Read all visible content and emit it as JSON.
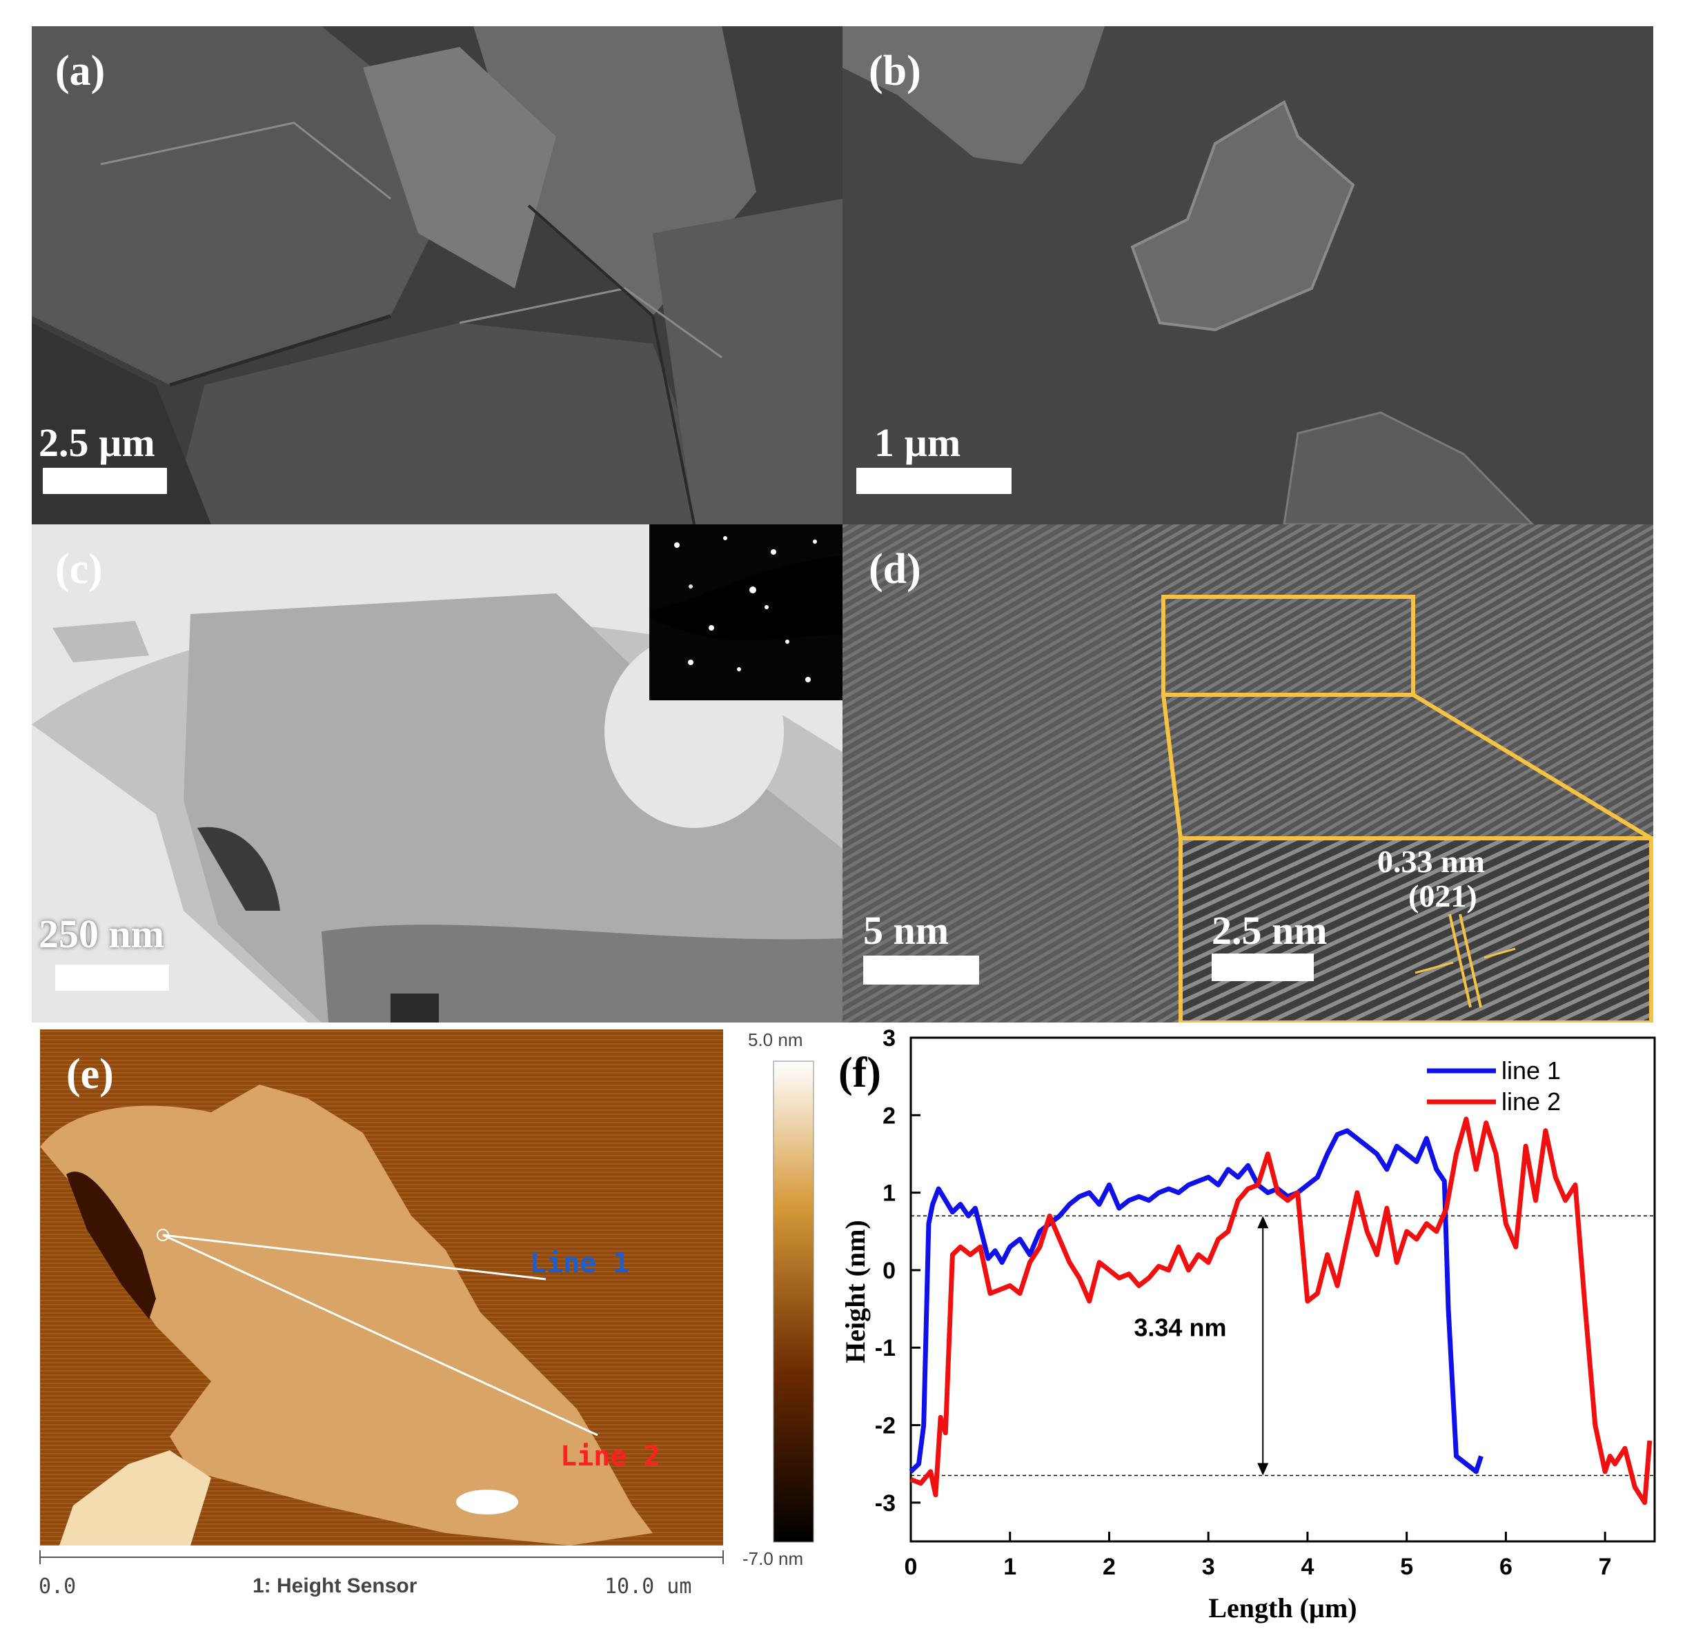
{
  "panels": {
    "a": {
      "label": "(a)",
      "scale": "2.5 µm"
    },
    "b": {
      "label": "(b)",
      "scale": "1 µm"
    },
    "c": {
      "label": "(c)",
      "scale": "250 nm"
    },
    "d": {
      "label": "(d)",
      "scale": "5 nm",
      "inset_scale": "2.5 nm",
      "spacing": "0.33 nm",
      "plane": "(021)"
    },
    "e": {
      "label": "(e)",
      "line1": "Line 1",
      "line2": "Line 2",
      "cbar_max": "5.0 nm",
      "cbar_min": "-7.0 nm",
      "axis_start": "0.0",
      "axis_title": "1: Height Sensor",
      "axis_end": "10.0 um"
    },
    "f": {
      "label": "(f)"
    }
  },
  "colors": {
    "line1": "#1010e8",
    "line2": "#f01010",
    "box": "#f5c242"
  },
  "chart_data": {
    "type": "line",
    "xlabel": "Length (µm)",
    "ylabel": "Height (nm)",
    "xlim": [
      0,
      7.5
    ],
    "ylim": [
      -3.5,
      3
    ],
    "xticks": [
      0,
      1,
      2,
      3,
      4,
      5,
      6,
      7
    ],
    "yticks": [
      -3,
      -2,
      -1,
      0,
      1,
      2,
      3
    ],
    "legend_position": "top-right",
    "annotation": "3.34 nm",
    "reference_lines": [
      0.7,
      -2.65
    ],
    "series": [
      {
        "name": "line 1",
        "color": "#1010e8",
        "x": [
          0,
          0.08,
          0.13,
          0.18,
          0.22,
          0.28,
          0.35,
          0.42,
          0.5,
          0.58,
          0.65,
          0.72,
          0.78,
          0.85,
          0.92,
          1.0,
          1.1,
          1.2,
          1.3,
          1.4,
          1.5,
          1.6,
          1.7,
          1.8,
          1.9,
          2.0,
          2.1,
          2.2,
          2.3,
          2.4,
          2.5,
          2.6,
          2.7,
          2.8,
          2.9,
          3.0,
          3.1,
          3.2,
          3.3,
          3.4,
          3.5,
          3.6,
          3.7,
          3.8,
          3.9,
          4.0,
          4.1,
          4.2,
          4.3,
          4.4,
          4.5,
          4.6,
          4.7,
          4.8,
          4.9,
          5.0,
          5.1,
          5.2,
          5.3,
          5.38,
          5.42,
          5.5,
          5.6,
          5.7,
          5.75
        ],
        "y": [
          -2.6,
          -2.5,
          -2.0,
          0.6,
          0.85,
          1.05,
          0.9,
          0.75,
          0.85,
          0.7,
          0.8,
          0.45,
          0.15,
          0.25,
          0.1,
          0.3,
          0.4,
          0.2,
          0.5,
          0.6,
          0.7,
          0.85,
          0.95,
          1.0,
          0.85,
          1.1,
          0.8,
          0.9,
          0.95,
          0.9,
          1.0,
          1.05,
          1.0,
          1.1,
          1.15,
          1.2,
          1.1,
          1.3,
          1.2,
          1.35,
          1.1,
          1.0,
          1.05,
          0.95,
          1.0,
          1.1,
          1.2,
          1.5,
          1.75,
          1.8,
          1.7,
          1.6,
          1.5,
          1.3,
          1.6,
          1.5,
          1.4,
          1.7,
          1.3,
          1.15,
          -0.5,
          -2.4,
          -2.5,
          -2.6,
          -2.4
        ]
      },
      {
        "name": "line 2",
        "color": "#f01010",
        "x": [
          0,
          0.1,
          0.2,
          0.25,
          0.3,
          0.35,
          0.42,
          0.5,
          0.6,
          0.7,
          0.8,
          0.9,
          1.0,
          1.1,
          1.2,
          1.3,
          1.4,
          1.5,
          1.6,
          1.7,
          1.8,
          1.9,
          2.0,
          2.1,
          2.2,
          2.3,
          2.4,
          2.5,
          2.6,
          2.7,
          2.8,
          2.9,
          3.0,
          3.1,
          3.2,
          3.3,
          3.4,
          3.5,
          3.6,
          3.7,
          3.8,
          3.9,
          4.0,
          4.1,
          4.2,
          4.3,
          4.4,
          4.5,
          4.6,
          4.7,
          4.8,
          4.9,
          5.0,
          5.1,
          5.2,
          5.3,
          5.4,
          5.5,
          5.6,
          5.7,
          5.8,
          5.9,
          6.0,
          6.1,
          6.2,
          6.3,
          6.4,
          6.5,
          6.6,
          6.7,
          6.8,
          6.9,
          7.0,
          7.05,
          7.1,
          7.2,
          7.3,
          7.4,
          7.45
        ],
        "y": [
          -2.7,
          -2.75,
          -2.6,
          -2.9,
          -1.9,
          -2.1,
          0.2,
          0.3,
          0.2,
          0.3,
          -0.3,
          -0.25,
          -0.2,
          -0.3,
          0.1,
          0.3,
          0.7,
          0.4,
          0.1,
          -0.1,
          -0.4,
          0.1,
          0.0,
          -0.1,
          -0.05,
          -0.2,
          -0.1,
          0.05,
          0.0,
          0.3,
          0.0,
          0.2,
          0.1,
          0.4,
          0.5,
          0.9,
          1.05,
          1.1,
          1.5,
          1.0,
          0.9,
          1.0,
          -0.4,
          -0.3,
          0.2,
          -0.2,
          0.4,
          1.0,
          0.5,
          0.2,
          0.8,
          0.1,
          0.5,
          0.4,
          0.6,
          0.5,
          0.8,
          1.5,
          1.95,
          1.3,
          1.9,
          1.5,
          0.6,
          0.3,
          1.6,
          0.9,
          1.8,
          1.2,
          0.9,
          1.1,
          -0.5,
          -2.0,
          -2.6,
          -2.4,
          -2.5,
          -2.3,
          -2.8,
          -3.0,
          -2.2
        ]
      }
    ]
  }
}
